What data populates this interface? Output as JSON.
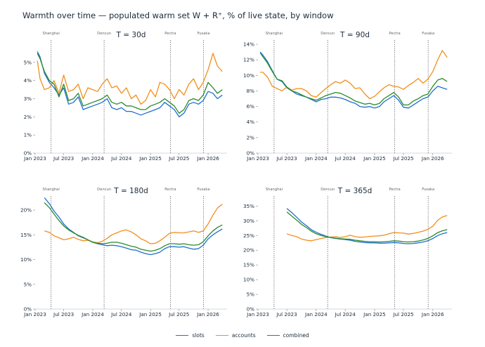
{
  "title": "Warmth over time — populated warm set W + R⁺, % of live state, by window",
  "colors": {
    "slots": "#1f6fd0",
    "accounts": "#f28e1c",
    "combined": "#2a8a2a"
  },
  "legend": [
    {
      "key": "slots",
      "label": "slots"
    },
    {
      "key": "accounts",
      "label": "accounts"
    },
    {
      "key": "combined",
      "label": "combined"
    }
  ],
  "chart_data": [
    {
      "type": "line",
      "title": "T = 30d",
      "ylim": [
        0,
        6
      ],
      "yticks": [
        0,
        1,
        2,
        3,
        4,
        5
      ],
      "ytick_labels": [
        "0%",
        "1%",
        "2%",
        "3%",
        "4%",
        "5%"
      ],
      "xticks": [
        "2023-01-01",
        "2023-07-01",
        "2024-01-01",
        "2024-07-01",
        "2025-01-01",
        "2025-07-01",
        "2026-01-01"
      ],
      "xtick_labels": [
        "Jan 2023",
        "Jul 2023",
        "Jan 2024",
        "Jul 2024",
        "Jan 2025",
        "Jul 2025",
        "Jan 2026"
      ],
      "events": [
        {
          "date": "2023-04-12",
          "label": "Shanghai"
        },
        {
          "date": "2024-03-13",
          "label": "Dencun"
        },
        {
          "date": "2025-05-07",
          "label": "Pectra"
        },
        {
          "date": "2025-12-03",
          "label": "Fusaka"
        }
      ],
      "x": [
        "2023-01-15",
        "2023-02-01",
        "2023-03-01",
        "2023-04-01",
        "2023-05-01",
        "2023-06-01",
        "2023-07-01",
        "2023-08-01",
        "2023-09-01",
        "2023-10-01",
        "2023-11-01",
        "2023-12-01",
        "2024-01-01",
        "2024-02-01",
        "2024-03-01",
        "2024-04-01",
        "2024-05-01",
        "2024-06-01",
        "2024-07-01",
        "2024-08-01",
        "2024-09-01",
        "2024-10-01",
        "2024-11-01",
        "2024-12-01",
        "2025-01-01",
        "2025-02-01",
        "2025-03-01",
        "2025-04-01",
        "2025-05-01",
        "2025-06-01",
        "2025-07-01",
        "2025-08-01",
        "2025-09-01",
        "2025-10-01",
        "2025-11-01",
        "2025-12-01",
        "2026-01-01",
        "2026-02-01",
        "2026-03-01",
        "2026-04-01"
      ],
      "series": [
        {
          "key": "slots",
          "name": "slots",
          "values": [
            5.6,
            5.3,
            4.4,
            3.9,
            3.6,
            3.2,
            3.6,
            2.7,
            2.8,
            3.1,
            2.4,
            2.5,
            2.6,
            2.7,
            2.8,
            3.0,
            2.5,
            2.4,
            2.5,
            2.3,
            2.3,
            2.2,
            2.1,
            2.2,
            2.3,
            2.4,
            2.5,
            2.8,
            2.6,
            2.4,
            2.0,
            2.2,
            2.7,
            2.8,
            2.7,
            2.9,
            3.4,
            3.3,
            3.0,
            3.2
          ]
        },
        {
          "key": "accounts",
          "name": "accounts",
          "values": [
            5.1,
            4.1,
            3.5,
            3.6,
            4.0,
            3.3,
            4.3,
            3.4,
            3.5,
            3.8,
            3.0,
            3.6,
            3.5,
            3.4,
            3.8,
            4.1,
            3.6,
            3.7,
            3.3,
            3.6,
            3.0,
            3.2,
            2.7,
            2.9,
            3.5,
            3.1,
            3.9,
            3.8,
            3.5,
            3.0,
            3.5,
            3.2,
            3.8,
            4.1,
            3.5,
            3.9,
            4.6,
            5.5,
            4.8,
            4.5
          ]
        },
        {
          "key": "combined",
          "name": "combined",
          "values": [
            5.5,
            5.2,
            4.5,
            4.0,
            3.8,
            3.1,
            3.8,
            2.9,
            3.0,
            3.3,
            2.6,
            2.7,
            2.8,
            2.9,
            3.0,
            3.2,
            2.8,
            2.7,
            2.8,
            2.6,
            2.6,
            2.5,
            2.4,
            2.4,
            2.6,
            2.7,
            2.8,
            3.0,
            2.8,
            2.6,
            2.2,
            2.4,
            2.9,
            3.0,
            2.9,
            3.2,
            3.9,
            3.6,
            3.3,
            3.5
          ]
        }
      ]
    },
    {
      "type": "line",
      "title": "T = 90d",
      "ylim": [
        0,
        14
      ],
      "yticks": [
        0,
        2,
        4,
        6,
        8,
        10,
        12,
        14
      ],
      "ytick_labels": [
        "0%",
        "2%",
        "4%",
        "6%",
        "8%",
        "10%",
        "12%",
        "14%"
      ],
      "xticks": [
        "2023-01-01",
        "2023-07-01",
        "2024-01-01",
        "2024-07-01",
        "2025-01-01",
        "2025-07-01",
        "2026-01-01"
      ],
      "xtick_labels": [
        "Jan 2023",
        "Jul 2023",
        "Jan 2024",
        "Jul 2024",
        "Jan 2025",
        "Jul 2025",
        "Jan 2026"
      ],
      "events": [
        {
          "date": "2023-04-12",
          "label": "Shanghai"
        },
        {
          "date": "2024-03-13",
          "label": "Dencun"
        },
        {
          "date": "2025-05-07",
          "label": "Pectra"
        },
        {
          "date": "2025-12-03",
          "label": "Fusaka"
        }
      ],
      "x": [
        "2023-01-15",
        "2023-02-01",
        "2023-03-01",
        "2023-04-01",
        "2023-05-01",
        "2023-06-01",
        "2023-07-01",
        "2023-08-01",
        "2023-09-01",
        "2023-10-01",
        "2023-11-01",
        "2023-12-01",
        "2024-01-01",
        "2024-02-01",
        "2024-03-01",
        "2024-04-01",
        "2024-05-01",
        "2024-06-01",
        "2024-07-01",
        "2024-08-01",
        "2024-09-01",
        "2024-10-01",
        "2024-11-01",
        "2024-12-01",
        "2025-01-01",
        "2025-02-01",
        "2025-03-01",
        "2025-04-01",
        "2025-05-01",
        "2025-06-01",
        "2025-07-01",
        "2025-08-01",
        "2025-09-01",
        "2025-10-01",
        "2025-11-01",
        "2025-12-01",
        "2026-01-01",
        "2026-02-01",
        "2026-03-01",
        "2026-04-01"
      ],
      "series": [
        {
          "key": "slots",
          "name": "slots",
          "values": [
            13.0,
            12.6,
            11.8,
            10.6,
            9.5,
            9.2,
            8.4,
            8.0,
            7.6,
            7.4,
            7.2,
            6.9,
            6.6,
            6.9,
            7.0,
            7.2,
            7.2,
            7.1,
            6.9,
            6.6,
            6.4,
            6.0,
            5.9,
            6.0,
            5.8,
            6.0,
            6.6,
            7.0,
            7.4,
            6.8,
            5.9,
            5.8,
            6.2,
            6.6,
            7.0,
            7.2,
            8.0,
            8.6,
            8.4,
            8.2
          ]
        },
        {
          "key": "accounts",
          "name": "accounts",
          "values": [
            10.4,
            10.4,
            9.8,
            8.6,
            8.3,
            8.0,
            8.5,
            8.1,
            8.3,
            8.3,
            8.0,
            7.4,
            7.2,
            7.8,
            8.3,
            8.8,
            9.2,
            9.0,
            9.4,
            9.0,
            8.3,
            8.4,
            7.6,
            7.0,
            7.3,
            7.9,
            8.4,
            8.8,
            8.6,
            8.5,
            8.2,
            8.7,
            9.1,
            9.6,
            9.0,
            9.5,
            10.5,
            12.0,
            13.2,
            12.3
          ]
        },
        {
          "key": "combined",
          "name": "combined",
          "values": [
            12.9,
            12.4,
            11.6,
            10.5,
            9.5,
            9.3,
            8.5,
            8.0,
            7.8,
            7.5,
            7.2,
            7.0,
            6.8,
            7.1,
            7.4,
            7.6,
            7.8,
            7.7,
            7.4,
            7.1,
            6.7,
            6.5,
            6.3,
            6.4,
            6.2,
            6.4,
            7.0,
            7.4,
            7.8,
            7.2,
            6.2,
            6.2,
            6.7,
            7.0,
            7.4,
            7.6,
            8.6,
            9.4,
            9.6,
            9.2
          ]
        }
      ]
    },
    {
      "type": "line",
      "title": "T = 180d",
      "ylim": [
        0,
        22
      ],
      "yticks": [
        0,
        5,
        10,
        15,
        20
      ],
      "ytick_labels": [
        "0%",
        "5%",
        "10%",
        "15%",
        "20%"
      ],
      "xticks": [
        "2023-01-01",
        "2023-07-01",
        "2024-01-01",
        "2024-07-01",
        "2025-01-01",
        "2025-07-01",
        "2026-01-01"
      ],
      "xtick_labels": [
        "Jan 2023",
        "Jul 2023",
        "Jan 2024",
        "Jul 2024",
        "Jan 2025",
        "Jul 2025",
        "Jan 2026"
      ],
      "events": [
        {
          "date": "2023-04-12",
          "label": "Shanghai"
        },
        {
          "date": "2024-03-13",
          "label": "Dencun"
        },
        {
          "date": "2025-05-07",
          "label": "Pectra"
        },
        {
          "date": "2025-12-03",
          "label": "Fusaka"
        }
      ],
      "x": [
        "2023-03-01",
        "2023-04-01",
        "2023-05-01",
        "2023-06-01",
        "2023-07-01",
        "2023-08-01",
        "2023-09-01",
        "2023-10-01",
        "2023-11-01",
        "2023-12-01",
        "2024-01-01",
        "2024-02-01",
        "2024-03-01",
        "2024-04-01",
        "2024-05-01",
        "2024-06-01",
        "2024-07-01",
        "2024-08-01",
        "2024-09-01",
        "2024-10-01",
        "2024-11-01",
        "2024-12-01",
        "2025-01-01",
        "2025-02-01",
        "2025-03-01",
        "2025-04-01",
        "2025-05-01",
        "2025-06-01",
        "2025-07-01",
        "2025-08-01",
        "2025-09-01",
        "2025-10-01",
        "2025-11-01",
        "2025-12-01",
        "2026-01-01",
        "2026-02-01",
        "2026-03-01",
        "2026-04-01"
      ],
      "series": [
        {
          "key": "slots",
          "name": "slots",
          "values": [
            22.5,
            21.3,
            19.8,
            18.6,
            17.2,
            16.2,
            15.5,
            14.8,
            14.4,
            14.0,
            13.5,
            13.2,
            13.0,
            12.8,
            12.9,
            12.8,
            12.6,
            12.3,
            12.0,
            11.9,
            11.5,
            11.2,
            11.0,
            11.2,
            11.5,
            12.2,
            12.6,
            12.6,
            12.5,
            12.6,
            12.3,
            12.1,
            12.2,
            12.9,
            14.2,
            15.0,
            15.6,
            16.2
          ]
        },
        {
          "key": "accounts",
          "name": "accounts",
          "values": [
            15.8,
            15.5,
            14.8,
            14.4,
            14.0,
            14.2,
            14.5,
            14.1,
            13.8,
            13.9,
            13.6,
            13.4,
            13.7,
            14.3,
            15.0,
            15.4,
            15.8,
            16.0,
            15.6,
            15.0,
            14.2,
            13.8,
            13.2,
            13.3,
            13.8,
            14.5,
            15.3,
            15.5,
            15.4,
            15.4,
            15.6,
            15.8,
            15.5,
            15.8,
            17.2,
            19.0,
            20.4,
            21.2
          ]
        },
        {
          "key": "combined",
          "name": "combined",
          "values": [
            21.5,
            20.5,
            19.2,
            17.9,
            16.8,
            16.0,
            15.4,
            14.9,
            14.5,
            14.0,
            13.5,
            13.3,
            13.2,
            13.3,
            13.5,
            13.5,
            13.3,
            13.0,
            12.7,
            12.5,
            12.1,
            11.9,
            11.7,
            11.9,
            12.2,
            12.8,
            13.2,
            13.2,
            13.1,
            13.2,
            13.0,
            12.9,
            13.0,
            13.6,
            14.8,
            15.8,
            16.5,
            17.0
          ]
        }
      ]
    },
    {
      "type": "line",
      "title": "T = 365d",
      "ylim": [
        0,
        37
      ],
      "yticks": [
        0,
        5,
        10,
        15,
        20,
        25,
        30,
        35
      ],
      "ytick_labels": [
        "0%",
        "5%",
        "10%",
        "15%",
        "20%",
        "25%",
        "30%",
        "35%"
      ],
      "xticks": [
        "2023-01-01",
        "2023-07-01",
        "2024-01-01",
        "2024-07-01",
        "2025-01-01",
        "2025-07-01",
        "2026-01-01"
      ],
      "xtick_labels": [
        "Jan 2023",
        "Jul 2023",
        "Jan 2024",
        "Jul 2024",
        "Jan 2025",
        "Jul 2025",
        "Jan 2026"
      ],
      "events": [
        {
          "date": "2023-04-12",
          "label": "Shanghai"
        },
        {
          "date": "2024-03-13",
          "label": "Dencun"
        },
        {
          "date": "2025-05-07",
          "label": "Pectra"
        },
        {
          "date": "2025-12-03",
          "label": "Fusaka"
        }
      ],
      "x": [
        "2023-07-01",
        "2023-08-01",
        "2023-09-01",
        "2023-10-01",
        "2023-11-01",
        "2023-12-01",
        "2024-01-01",
        "2024-02-01",
        "2024-03-01",
        "2024-04-01",
        "2024-05-01",
        "2024-06-01",
        "2024-07-01",
        "2024-08-01",
        "2024-09-01",
        "2024-10-01",
        "2024-11-01",
        "2024-12-01",
        "2025-01-01",
        "2025-02-01",
        "2025-03-01",
        "2025-04-01",
        "2025-05-01",
        "2025-06-01",
        "2025-07-01",
        "2025-08-01",
        "2025-09-01",
        "2025-10-01",
        "2025-11-01",
        "2025-12-01",
        "2026-01-01",
        "2026-02-01",
        "2026-03-01",
        "2026-04-01"
      ],
      "series": [
        {
          "key": "slots",
          "name": "slots",
          "values": [
            34.2,
            32.8,
            31.2,
            29.6,
            28.3,
            27.0,
            26.1,
            25.4,
            24.8,
            24.3,
            24.0,
            23.8,
            23.6,
            23.4,
            23.0,
            22.8,
            22.6,
            22.5,
            22.5,
            22.4,
            22.4,
            22.5,
            22.6,
            22.5,
            22.3,
            22.2,
            22.3,
            22.5,
            22.8,
            23.2,
            24.0,
            25.0,
            25.6,
            26.0
          ]
        },
        {
          "key": "accounts",
          "name": "accounts",
          "values": [
            25.6,
            25.0,
            24.6,
            23.8,
            23.4,
            23.2,
            23.6,
            24.0,
            24.3,
            24.5,
            24.6,
            24.3,
            24.6,
            25.1,
            24.6,
            24.4,
            24.5,
            24.7,
            24.8,
            24.9,
            25.1,
            25.6,
            26.0,
            25.9,
            25.8,
            25.5,
            25.7,
            26.1,
            26.5,
            27.1,
            28.2,
            30.2,
            31.3,
            31.8
          ]
        },
        {
          "key": "combined",
          "name": "combined",
          "values": [
            33.0,
            31.6,
            30.2,
            28.8,
            27.7,
            26.5,
            25.6,
            25.0,
            24.6,
            24.3,
            24.1,
            23.9,
            23.8,
            23.7,
            23.4,
            23.2,
            23.0,
            22.9,
            22.9,
            22.8,
            22.9,
            23.0,
            23.2,
            23.1,
            22.9,
            22.8,
            22.9,
            23.1,
            23.5,
            24.0,
            24.9,
            26.0,
            26.6,
            27.0
          ]
        }
      ]
    }
  ]
}
